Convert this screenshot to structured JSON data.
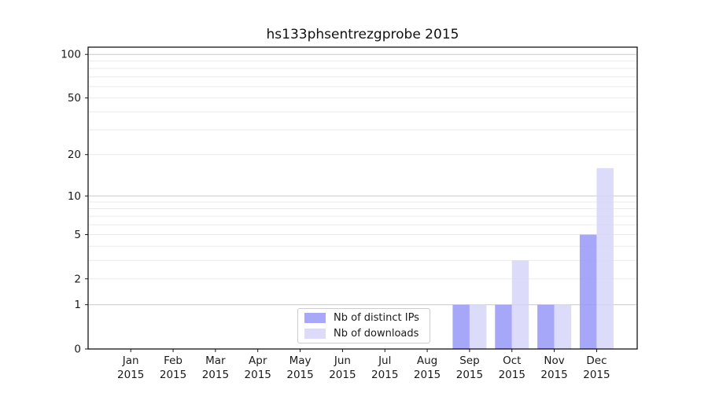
{
  "chart_data": {
    "type": "bar",
    "title": "hs133phsentrezgprobe 2015",
    "categories": [
      "Jan",
      "Feb",
      "Mar",
      "Apr",
      "May",
      "Jun",
      "Jul",
      "Aug",
      "Sep",
      "Oct",
      "Nov",
      "Dec"
    ],
    "category_year": "2015",
    "series": [
      {
        "name": "Nb of distinct IPs",
        "color": "rgba(152,152,249,0.85)",
        "swatch_color": "#a8a8f8",
        "values": [
          0,
          0,
          0,
          0,
          0,
          0,
          0,
          0,
          1,
          1,
          1,
          5
        ]
      },
      {
        "name": "Nb of downloads",
        "color": "rgba(214,214,249,0.85)",
        "swatch_color": "#dcdcfa",
        "values": [
          0,
          0,
          0,
          0,
          0,
          0,
          0,
          0,
          1,
          3,
          1,
          16
        ]
      }
    ],
    "yscale": "log1p",
    "yticks": [
      0,
      1,
      2,
      5,
      10,
      20,
      50,
      100
    ],
    "yticks_minor": [
      3,
      4,
      6,
      7,
      8,
      9,
      30,
      40,
      60,
      70,
      80,
      90
    ],
    "ylim": [
      0,
      113
    ],
    "xlabel": "",
    "ylabel": "",
    "grid": "horizontal",
    "legend_position": "inside lower-center",
    "colors": {
      "background": "#ffffff",
      "grid_major_decade": "#c9c9c9",
      "grid_minor": "#ebebeb",
      "axis": "#000000",
      "tick_text": "#1a1a1a"
    }
  }
}
